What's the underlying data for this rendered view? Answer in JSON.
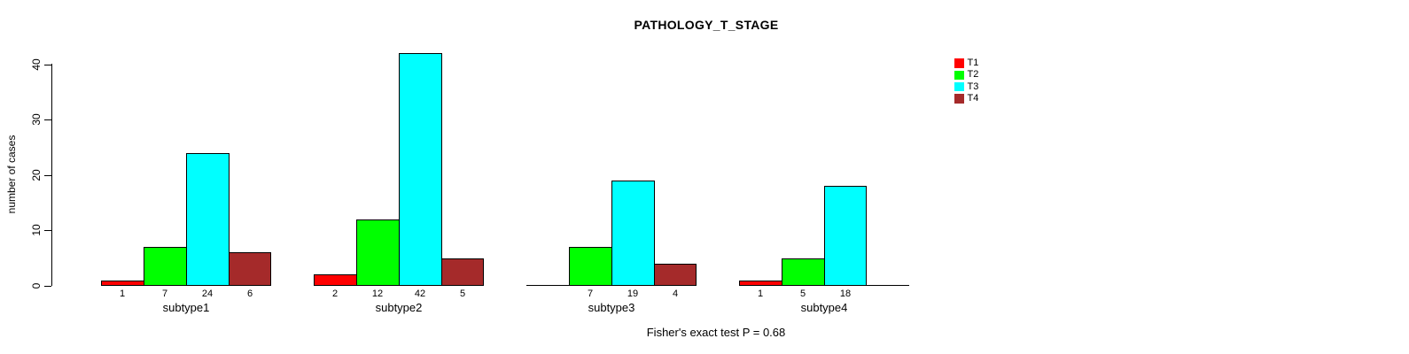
{
  "chart_data": {
    "type": "bar",
    "title": "PATHOLOGY_T_STAGE",
    "ylabel": "number of cases",
    "xlabel": "",
    "annotation": "Fisher's exact test P = 0.68",
    "categories": [
      "subtype1",
      "subtype2",
      "subtype3",
      "subtype4"
    ],
    "series": [
      {
        "name": "T1",
        "color": "#ff0000",
        "values": [
          1,
          2,
          0,
          1
        ]
      },
      {
        "name": "T2",
        "color": "#00ff00",
        "values": [
          7,
          12,
          7,
          5
        ]
      },
      {
        "name": "T3",
        "color": "#00ffff",
        "values": [
          24,
          42,
          19,
          18
        ]
      },
      {
        "name": "T4",
        "color": "#a52a2a",
        "values": [
          6,
          5,
          4,
          0
        ]
      }
    ],
    "bar_value_labels": [
      [
        "1",
        "7",
        "24",
        "6"
      ],
      [
        "2",
        "12",
        "42",
        "5"
      ],
      [
        "",
        "7",
        "19",
        "4"
      ],
      [
        "1",
        "5",
        "18",
        ""
      ]
    ],
    "yticks": [
      0,
      10,
      20,
      30,
      40
    ],
    "ylim": [
      0,
      40
    ],
    "grid": false,
    "legend_position": "top-right",
    "axis_color": "#000000",
    "background_color": "#ffffff"
  }
}
